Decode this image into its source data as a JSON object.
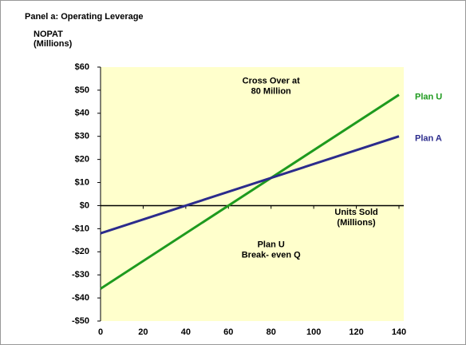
{
  "chart_data": {
    "type": "line",
    "title": "Panel a: Operating Leverage",
    "ylabel": [
      "NOPAT",
      "(Millions)"
    ],
    "x": [
      0,
      140
    ],
    "series": [
      {
        "name": "Plan U",
        "color": "#1e9a1e",
        "values": [
          -36,
          48
        ]
      },
      {
        "name": "Plan A",
        "color": "#2b2b8c",
        "values": [
          -12,
          30
        ]
      }
    ],
    "xlim": [
      0,
      140
    ],
    "xticks": [
      0,
      20,
      40,
      60,
      80,
      100,
      120,
      140
    ],
    "ylim": [
      -50,
      60
    ],
    "yticks": [
      {
        "value": -50,
        "label": "-$50"
      },
      {
        "value": -40,
        "label": "-$40"
      },
      {
        "value": -30,
        "label": "-$30"
      },
      {
        "value": -20,
        "label": "-$20"
      },
      {
        "value": -10,
        "label": "-$10"
      },
      {
        "value": 0,
        "label": "$0"
      },
      {
        "value": 10,
        "label": "$10"
      },
      {
        "value": 20,
        "label": "$20"
      },
      {
        "value": 30,
        "label": "$30"
      },
      {
        "value": 40,
        "label": "$40"
      },
      {
        "value": 50,
        "label": "$50"
      },
      {
        "value": 60,
        "label": "$60"
      }
    ],
    "annotations": [
      {
        "lines": [
          "Cross Over at",
          "80 Million"
        ],
        "x": 80,
        "y": 54
      },
      {
        "lines": [
          "Units Sold",
          "(Millions)"
        ],
        "x": 120,
        "y": -3
      },
      {
        "lines": [
          "Plan U",
          "Break- even Q"
        ],
        "x": 80,
        "y": -17
      }
    ],
    "plot_background": "#ffffcc"
  }
}
